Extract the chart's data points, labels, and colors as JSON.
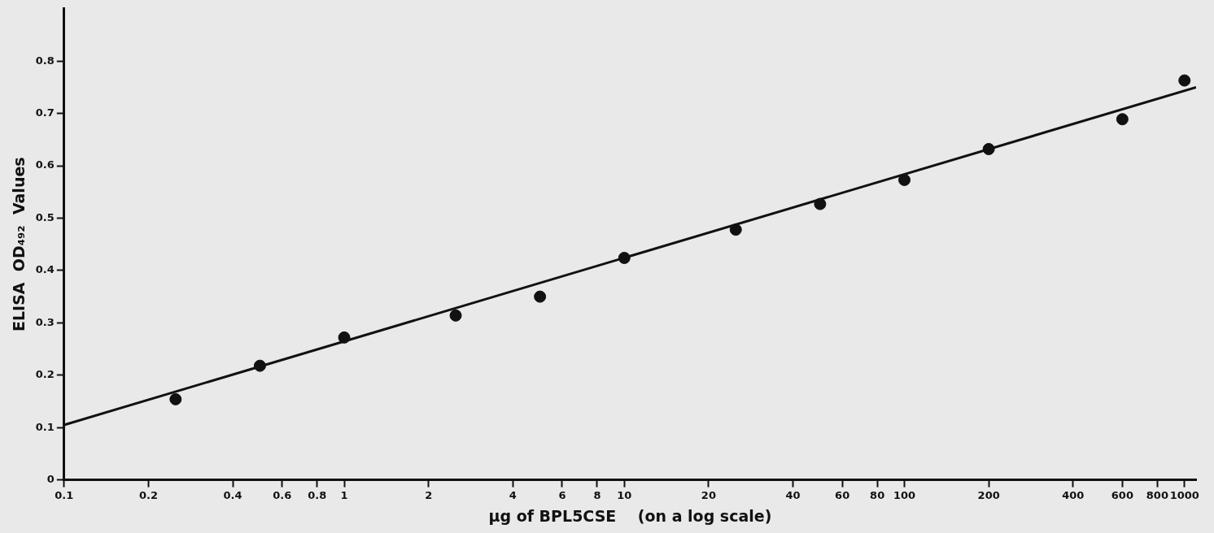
{
  "chart_data": {
    "type": "scatter",
    "xlabel": "µg of BPL5CSE    (on a log scale)",
    "ylabel": "ELISA  OD₄₉₂  Values",
    "x": [
      0.25,
      0.5,
      1,
      2.5,
      5,
      10,
      25,
      50,
      100,
      200,
      600,
      1000
    ],
    "series": [
      {
        "color": "#111111",
        "marker": "circle",
        "values": [
          0.154,
          0.218,
          0.272,
          0.314,
          0.35,
          0.424,
          0.478,
          0.527,
          0.573,
          0.632,
          0.689,
          0.763
        ]
      },
      {
        "type": "line",
        "color": "#111111",
        "marker": "none",
        "x": [
          0.1,
          1100
        ],
        "values": [
          0.105,
          0.75
        ]
      }
    ],
    "log": "x",
    "xlim": [
      0.1,
      1100
    ],
    "ylim": [
      0,
      0.9
    ],
    "xticks": [
      0.1,
      0.2,
      0.4,
      0.6,
      0.8,
      1,
      2,
      4,
      6,
      8,
      10,
      20,
      40,
      60,
      80,
      100,
      200,
      400,
      600,
      800,
      1000
    ],
    "yticks": [
      0,
      0.1,
      0.2,
      0.3,
      0.4,
      0.5,
      0.6,
      0.7,
      0.8
    ],
    "grid": false,
    "legend": false,
    "line_style": "solid"
  }
}
